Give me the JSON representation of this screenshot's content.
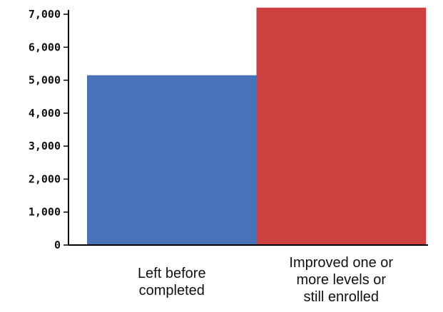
{
  "chart_data": {
    "type": "bar",
    "title": "",
    "xlabel": "",
    "ylabel": "",
    "categories": [
      [
        "Left before",
        "completed"
      ],
      [
        "Improved one or",
        "more levels or",
        "still enrolled"
      ]
    ],
    "values": [
      5150,
      7200
    ],
    "colors": [
      "#4a72b8",
      "#cc4040"
    ],
    "ylim": [
      0,
      7000
    ],
    "yticks": [
      0,
      1000,
      2000,
      3000,
      4000,
      5000,
      6000,
      7000
    ],
    "ytick_labels": [
      "0",
      "1,000",
      "2,000",
      "3,000",
      "4,000",
      "5,000",
      "6,000",
      "7,000"
    ],
    "grid": false,
    "legend": "none"
  }
}
